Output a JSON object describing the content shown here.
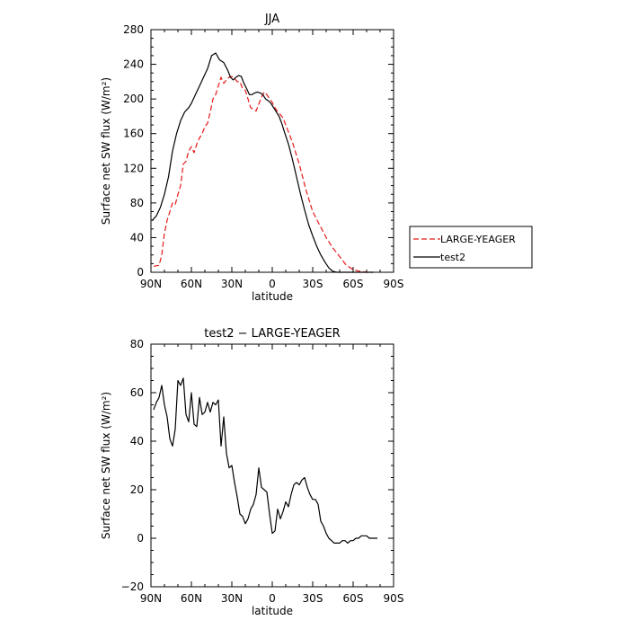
{
  "chart_data": [
    {
      "type": "line",
      "title": "JJA",
      "xlabel": "latitude",
      "ylabel": "Surface net SW flux (W/m²)",
      "xlim": [
        90,
        -90
      ],
      "ylim": [
        0,
        280
      ],
      "x_ticks": [
        "90N",
        "60N",
        "30N",
        "0",
        "30S",
        "60S",
        "90S"
      ],
      "y_ticks": [
        "0",
        "40",
        "80",
        "120",
        "160",
        "200",
        "240",
        "280"
      ],
      "legend_position": "right",
      "series": [
        {
          "name": "LARGE-YEAGER",
          "color": "#e8191a",
          "dash": "dashed",
          "x": [
            88,
            84,
            82,
            80,
            78,
            76,
            74,
            72,
            70,
            68,
            66,
            64,
            62,
            60,
            58,
            56,
            54,
            52,
            50,
            48,
            46,
            44,
            42,
            40,
            38,
            36,
            34,
            32,
            30,
            28,
            26,
            24,
            22,
            20,
            18,
            16,
            14,
            12,
            10,
            8,
            6,
            4,
            2,
            0,
            -2,
            -4,
            -6,
            -8,
            -10,
            -15,
            -20,
            -25,
            -30,
            -35,
            -40,
            -45,
            -50,
            -55,
            -60,
            -65,
            -70,
            -72,
            -75
          ],
          "y": [
            7,
            8,
            20,
            45,
            60,
            70,
            80,
            78,
            90,
            100,
            125,
            128,
            140,
            145,
            138,
            148,
            155,
            160,
            168,
            172,
            185,
            200,
            205,
            215,
            225,
            218,
            222,
            225,
            226,
            224,
            220,
            220,
            212,
            210,
            200,
            190,
            188,
            186,
            194,
            202,
            208,
            205,
            200,
            196,
            190,
            185,
            182,
            178,
            170,
            150,
            125,
            95,
            70,
            55,
            40,
            28,
            18,
            8,
            3,
            1,
            0,
            0,
            0
          ]
        },
        {
          "name": "test2",
          "color": "#000000",
          "dash": "solid",
          "x": [
            89,
            86,
            83,
            80,
            77,
            74,
            71,
            68,
            65,
            62,
            60,
            57,
            54,
            51,
            48,
            45,
            42,
            39,
            36,
            33,
            31,
            29,
            27,
            25,
            23,
            21,
            19,
            17,
            15,
            13,
            11,
            9,
            7,
            5,
            3,
            1,
            -1,
            -3,
            -5,
            -7,
            -9,
            -12,
            -15,
            -18,
            -21,
            -24,
            -27,
            -30,
            -33,
            -36,
            -39,
            -42,
            -45,
            -48,
            -51,
            -54,
            -57,
            -60,
            -63,
            -66,
            -69,
            -72,
            -75
          ],
          "y": [
            60,
            65,
            75,
            90,
            110,
            140,
            160,
            175,
            185,
            190,
            195,
            205,
            215,
            225,
            235,
            250,
            253,
            245,
            242,
            233,
            225,
            222,
            225,
            227,
            226,
            218,
            212,
            205,
            205,
            207,
            208,
            207,
            205,
            200,
            198,
            195,
            190,
            185,
            180,
            172,
            162,
            148,
            130,
            110,
            90,
            72,
            55,
            42,
            30,
            20,
            12,
            5,
            1,
            0,
            0,
            0,
            0,
            0,
            0,
            0,
            0,
            0,
            0
          ]
        }
      ]
    },
    {
      "type": "line",
      "title": "test2 − LARGE-YEAGER",
      "xlabel": "latitude",
      "ylabel": "Surface net SW flux (W/m²)",
      "xlim": [
        90,
        -90
      ],
      "ylim": [
        -20,
        80
      ],
      "x_ticks": [
        "90N",
        "60N",
        "30N",
        "0",
        "30S",
        "60S",
        "90S"
      ],
      "y_ticks": [
        "−20",
        "0",
        "20",
        "40",
        "60",
        "80"
      ],
      "series": [
        {
          "name": "test2 − LARGE-YEAGER",
          "color": "#000000",
          "dash": "solid",
          "x": [
            88,
            86,
            84,
            82,
            80,
            78,
            76,
            74,
            72,
            70,
            68,
            66,
            64,
            62,
            60,
            58,
            56,
            54,
            52,
            50,
            48,
            46,
            44,
            42,
            40,
            38,
            36,
            34,
            32,
            30,
            28,
            26,
            24,
            22,
            20,
            18,
            16,
            14,
            12,
            10,
            8,
            6,
            4,
            2,
            0,
            -2,
            -4,
            -6,
            -8,
            -10,
            -12,
            -14,
            -16,
            -18,
            -20,
            -22,
            -24,
            -26,
            -28,
            -30,
            -32,
            -34,
            -36,
            -38,
            -40,
            -42,
            -44,
            -46,
            -48,
            -50,
            -52,
            -54,
            -56,
            -58,
            -60,
            -62,
            -64,
            -66,
            -68,
            -70,
            -72,
            -74,
            -76,
            -78
          ],
          "y": [
            53,
            56,
            58,
            63,
            55,
            50,
            41,
            38,
            45,
            65,
            63,
            66,
            51,
            48,
            60,
            47,
            46,
            58,
            51,
            52,
            56,
            52,
            56,
            55,
            57,
            38,
            50,
            35,
            29,
            30,
            23,
            17,
            10,
            9,
            6,
            8,
            12,
            14,
            18,
            29,
            21,
            20,
            19,
            10,
            2,
            3,
            12,
            8,
            11,
            15,
            13,
            18,
            22,
            23,
            22,
            24,
            25,
            21,
            18,
            16,
            16,
            14,
            7,
            5,
            2,
            0,
            -1,
            -2,
            -2,
            -2,
            -1,
            -1,
            -2,
            -1,
            -1,
            0,
            0,
            1,
            1,
            1,
            0,
            0,
            0,
            0
          ]
        }
      ]
    }
  ]
}
